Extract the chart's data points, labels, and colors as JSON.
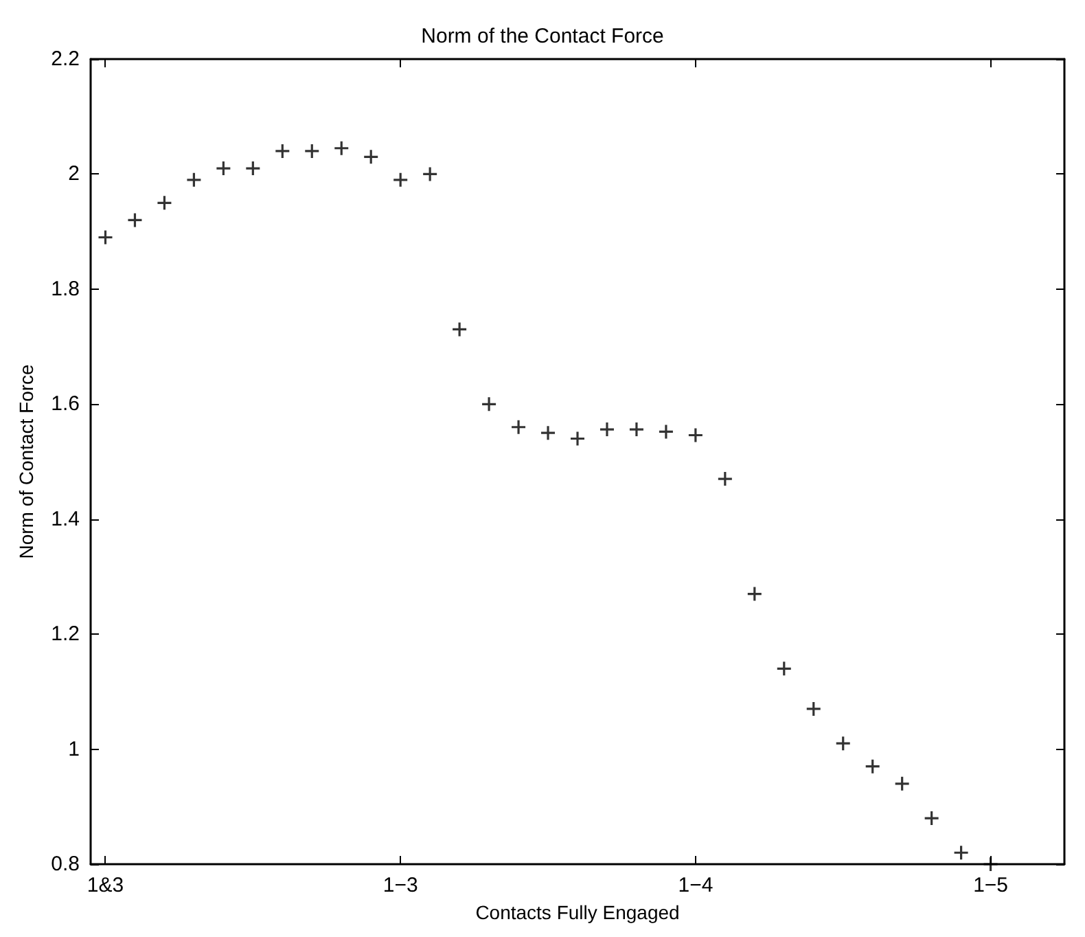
{
  "chart_data": {
    "type": "scatter",
    "title": "Norm of the Contact Force",
    "xlabel": "Contacts Fully Engaged",
    "ylabel": "Norm of Contact Force",
    "categories": [
      "1&3",
      null,
      null,
      null,
      null,
      null,
      null,
      null,
      null,
      null,
      "1−3",
      null,
      null,
      null,
      null,
      null,
      null,
      null,
      null,
      null,
      "1−4",
      null,
      null,
      null,
      null,
      null,
      null,
      null,
      null,
      null,
      "1−5",
      null,
      null
    ],
    "series": [
      {
        "color": "#000000",
        "values": [
          1.89,
          1.92,
          1.95,
          1.99,
          2.01,
          2.01,
          2.04,
          2.04,
          2.045,
          2.03,
          1.99,
          2.0,
          1.73,
          1.6,
          1.56,
          1.55,
          1.54,
          1.556,
          1.556,
          1.552,
          1.546,
          1.47,
          1.27,
          1.14,
          1.07,
          1.01,
          0.97,
          0.94,
          0.88,
          0.82,
          0.8,
          null,
          null
        ]
      }
    ],
    "ylim": [
      0.8,
      2.2
    ],
    "yticks": [
      0.8,
      1,
      1.2,
      1.4,
      1.6,
      1.8,
      2,
      2.2
    ],
    "marker": "cross",
    "grid": false
  }
}
